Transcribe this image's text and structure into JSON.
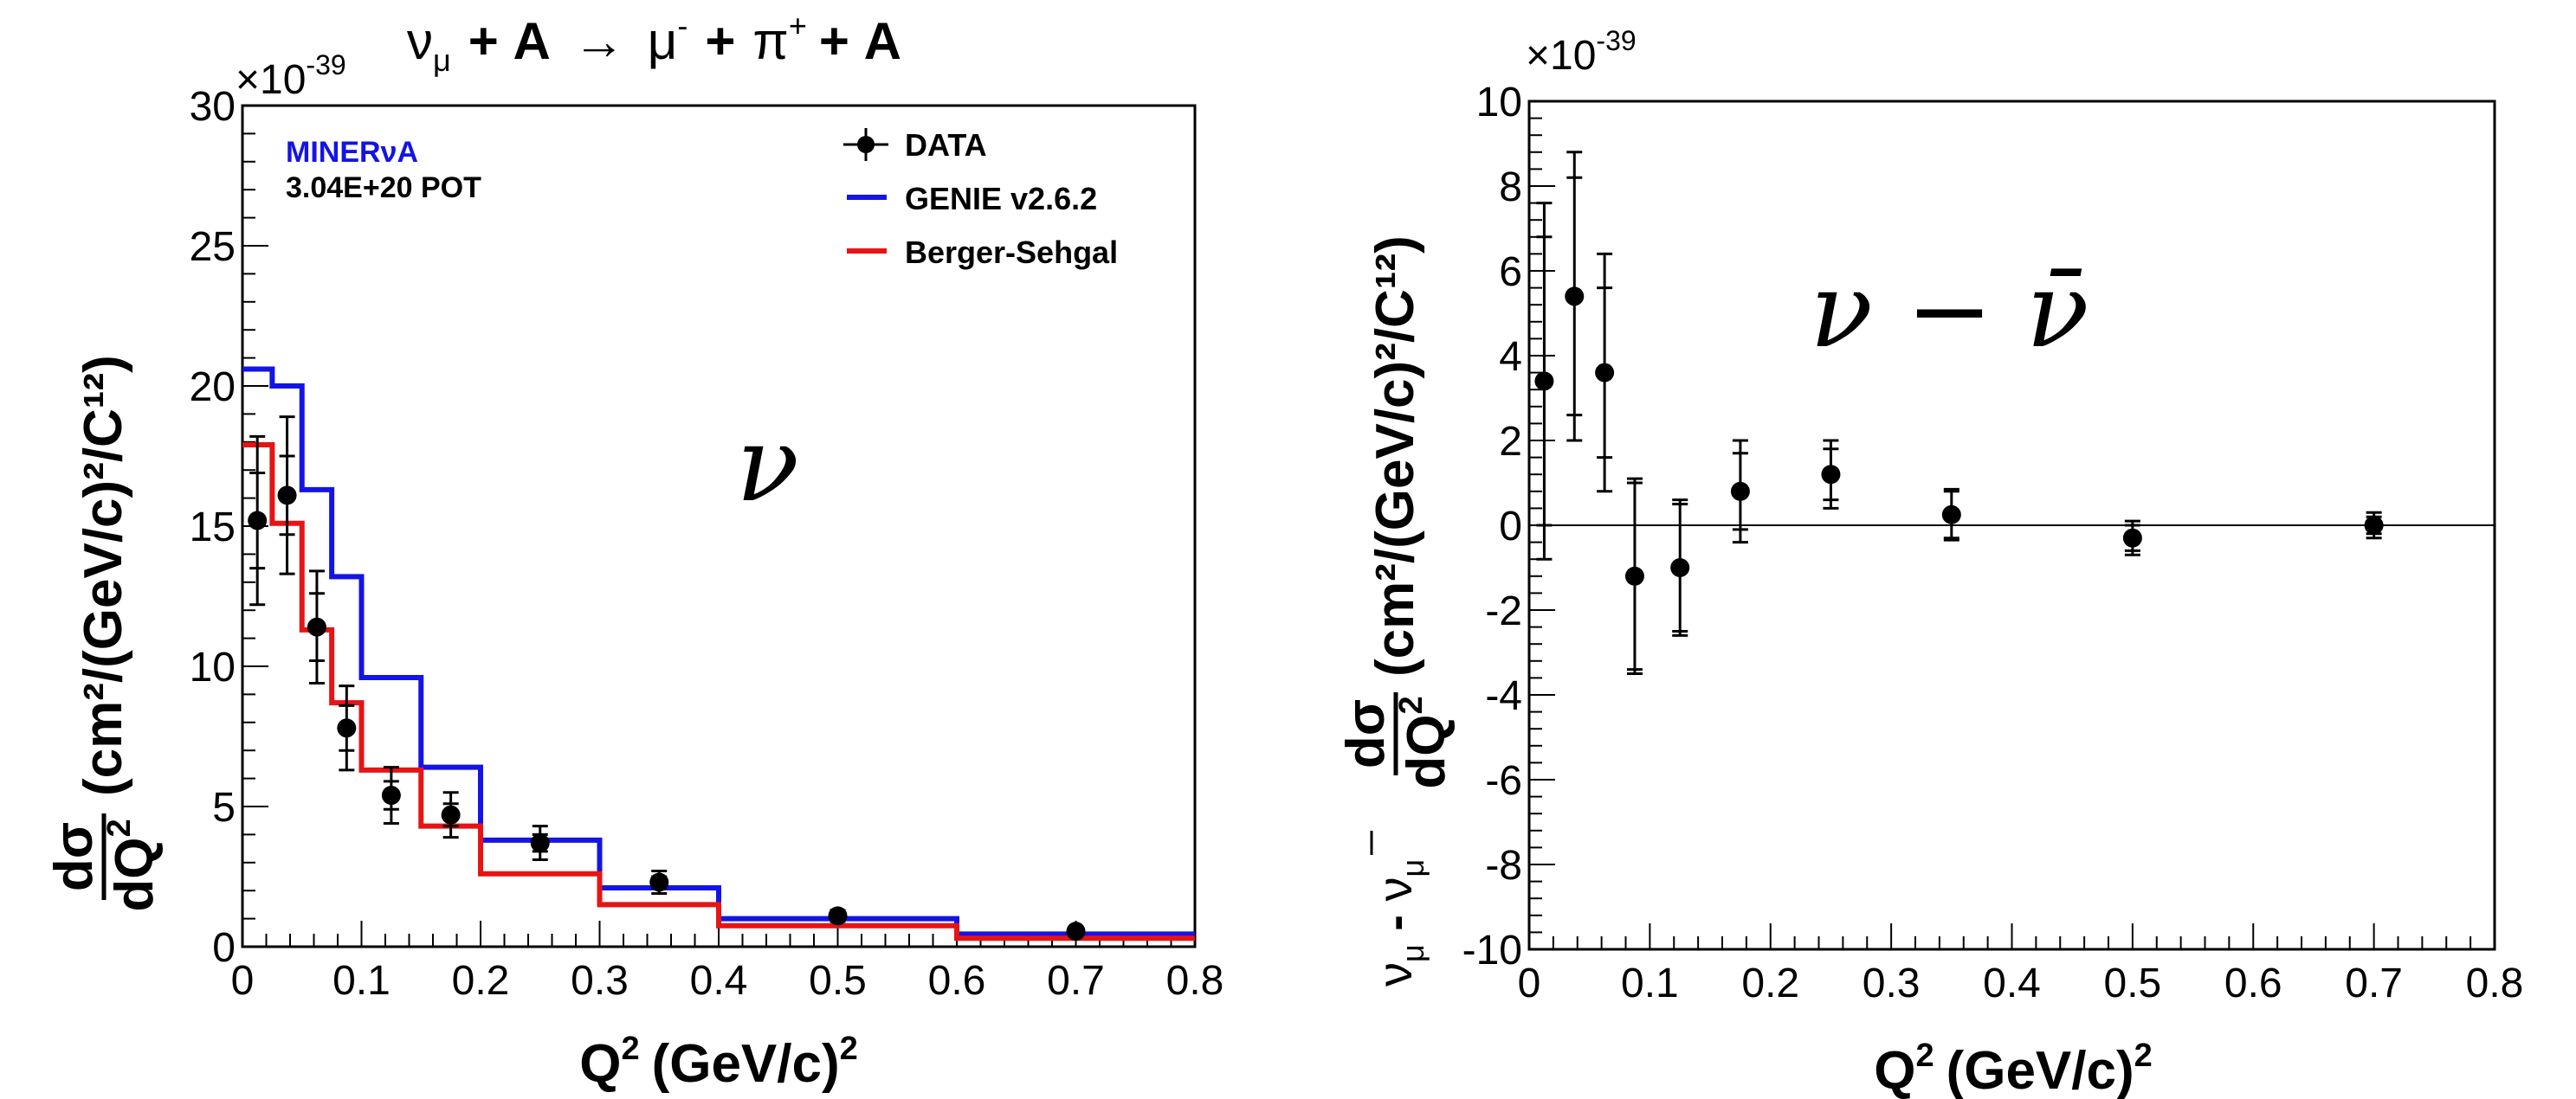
{
  "chart_data": [
    {
      "type": "step-histogram-with-errorbars",
      "title": "ν_μ + A → μ⁻ + π⁺ + A",
      "title_parts": {
        "nu": "ν",
        "mu_sub": "μ",
        "plus_a": "+ A",
        "arrow": "→",
        "mu": "μ",
        "minus": "-",
        "plus": "+",
        "pi": "π",
        "plus_sup": "+",
        "plus_a2": "+ A"
      },
      "exponent_label": "×10",
      "exponent_power": "-39",
      "xlabel": {
        "q": "Q",
        "sup": "2",
        "unit": "(GeV/c)",
        "unit_sup": "2"
      },
      "ylabel": {
        "frac_top": "dσ",
        "frac_bottom": "dQ",
        "frac_bottom_sup": "2",
        "unit": "(cm²/(GeV/c)²/C¹²)"
      },
      "xlim": [
        0,
        0.8
      ],
      "ylim": [
        0,
        30
      ],
      "xticks": [
        "0",
        "0.1",
        "0.2",
        "0.3",
        "0.4",
        "0.5",
        "0.6",
        "0.7",
        "0.8"
      ],
      "yticks": [
        "0",
        "5",
        "10",
        "15",
        "20",
        "25",
        "30"
      ],
      "annotation_experiment": "MINERνA",
      "annotation_pot": "3.04E+20 POT",
      "panel_symbol": "ν",
      "legend": [
        "DATA",
        "GENIE v2.6.2",
        "Berger-Sehgal"
      ],
      "colors": {
        "genie": "#1414e6",
        "berger": "#e61414",
        "data": "#000000"
      },
      "bin_edges": [
        0,
        0.025,
        0.05,
        0.075,
        0.1,
        0.15,
        0.2,
        0.3,
        0.4,
        0.6,
        0.8
      ],
      "series": [
        {
          "name": "GENIE v2.6.2",
          "values": [
            20.6,
            20.0,
            16.3,
            13.2,
            9.6,
            6.4,
            3.8,
            2.1,
            1.0,
            0.45
          ]
        },
        {
          "name": "Berger-Sehgal",
          "values": [
            17.9,
            15.1,
            11.3,
            8.7,
            6.3,
            4.3,
            2.6,
            1.5,
            0.75,
            0.3
          ]
        }
      ],
      "data_points": {
        "x": [
          0.0125,
          0.0375,
          0.0625,
          0.0875,
          0.125,
          0.175,
          0.25,
          0.35,
          0.5,
          0.7
        ],
        "y": [
          15.2,
          16.1,
          11.4,
          7.8,
          5.4,
          4.7,
          3.7,
          2.3,
          1.1,
          0.55
        ],
        "err_stat": [
          1.7,
          1.4,
          1.2,
          0.8,
          0.5,
          0.4,
          0.3,
          0.2,
          0.1,
          0.05
        ],
        "err_total": [
          3.0,
          2.8,
          2.0,
          1.5,
          1.0,
          0.8,
          0.6,
          0.4,
          0.2,
          0.1
        ]
      }
    },
    {
      "type": "scatter-with-errorbars",
      "exponent_label": "×10",
      "exponent_power": "-39",
      "xlabel": {
        "q": "Q",
        "sup": "2",
        "unit": "(GeV/c)",
        "unit_sup": "2"
      },
      "ylabel": {
        "nu": "ν",
        "mu_sub": "μ",
        "dash": " - ",
        "nubar": "ν",
        "mu_sub2": "μ",
        "frac_top": "dσ",
        "frac_bottom": "dQ",
        "frac_bottom_sup": "2",
        "unit": "(cm²/(GeV/c)²/C¹²)"
      },
      "xlim": [
        0,
        0.8
      ],
      "ylim": [
        -10,
        10
      ],
      "xticks": [
        "0",
        "0.1",
        "0.2",
        "0.3",
        "0.4",
        "0.5",
        "0.6",
        "0.7",
        "0.8"
      ],
      "yticks": [
        "-10",
        "-8",
        "-6",
        "-4",
        "-2",
        "0",
        "2",
        "4",
        "6",
        "8",
        "10"
      ],
      "panel_symbol": "ν − ν̄",
      "zero_line": true,
      "data_points": {
        "x": [
          0.0125,
          0.0375,
          0.0625,
          0.0875,
          0.125,
          0.175,
          0.25,
          0.35,
          0.5,
          0.7
        ],
        "y": [
          3.4,
          5.4,
          3.6,
          -1.2,
          -1.0,
          0.8,
          1.2,
          0.25,
          -0.3,
          0.0
        ],
        "err_stat": [
          3.4,
          2.8,
          2.0,
          2.2,
          1.5,
          0.9,
          0.6,
          0.55,
          0.3,
          0.2
        ],
        "err_total": [
          4.2,
          3.4,
          2.8,
          2.3,
          1.6,
          1.2,
          0.8,
          0.6,
          0.4,
          0.3
        ]
      }
    }
  ]
}
